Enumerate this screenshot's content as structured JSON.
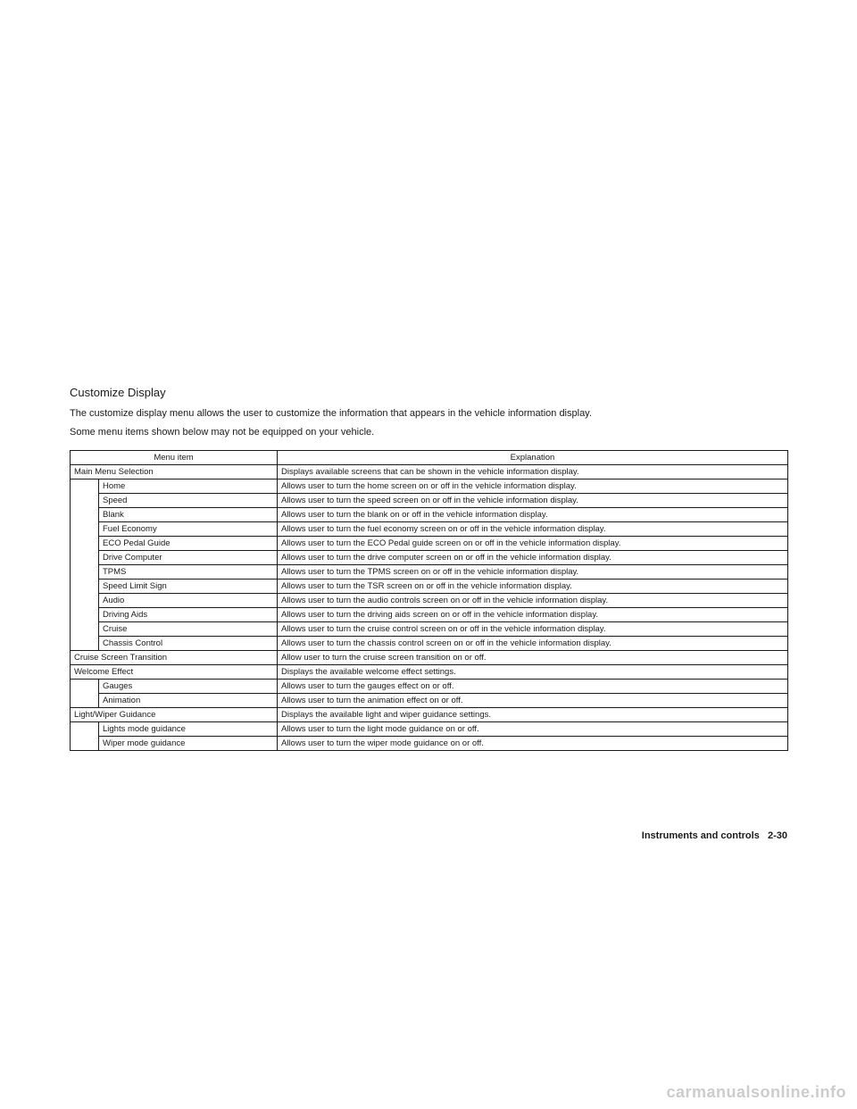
{
  "section_title": "Customize Display",
  "intro_line1": "The customize display menu allows the user to customize the information that appears in the vehicle information display.",
  "intro_line2": "Some menu items shown below may not be equipped on your vehicle.",
  "table": {
    "header_item": "Menu item",
    "header_explanation": "Explanation",
    "rows": [
      {
        "type": "full",
        "item": "Main Menu Selection",
        "exp": "Displays available screens that can be shown in the vehicle information display."
      },
      {
        "type": "sub",
        "item": "Home",
        "exp": "Allows user to turn the home screen on or off in the vehicle information display."
      },
      {
        "type": "sub",
        "item": "Speed",
        "exp": "Allows user to turn the speed screen on or off in the vehicle information display."
      },
      {
        "type": "sub",
        "item": "Blank",
        "exp": "Allows user to turn the blank on or off in the vehicle information display."
      },
      {
        "type": "sub",
        "item": "Fuel Economy",
        "exp": "Allows user to turn the fuel economy screen on or off in the vehicle information display."
      },
      {
        "type": "sub",
        "item": "ECO Pedal Guide",
        "exp": "Allows user to turn the ECO Pedal guide screen on or off in the vehicle information display."
      },
      {
        "type": "sub",
        "item": "Drive Computer",
        "exp": "Allows user to turn the drive computer screen on or off in the vehicle information display."
      },
      {
        "type": "sub",
        "item": "TPMS",
        "exp": "Allows user to turn the TPMS screen on or off in the vehicle information display."
      },
      {
        "type": "sub",
        "item": "Speed Limit Sign",
        "exp": "Allows user to turn the TSR screen on or off in the vehicle information display."
      },
      {
        "type": "sub",
        "item": "Audio",
        "exp": "Allows user to turn the audio controls screen on or off in the vehicle information display."
      },
      {
        "type": "sub",
        "item": "Driving Aids",
        "exp": "Allows user to turn the driving aids screen on or off in the vehicle information display."
      },
      {
        "type": "sub",
        "item": "Cruise",
        "exp": "Allows user to turn the cruise control screen on or off in the vehicle information display."
      },
      {
        "type": "sub",
        "item": "Chassis Control",
        "exp": "Allows user to turn the chassis control screen on or off in the vehicle information display."
      },
      {
        "type": "full",
        "item": "Cruise Screen Transition",
        "exp": "Allow user to turn the cruise screen transition on or off."
      },
      {
        "type": "full",
        "item": "Welcome Effect",
        "exp": "Displays the available welcome effect settings."
      },
      {
        "type": "sub2",
        "item": "Gauges",
        "exp": "Allows user to turn the gauges effect on or off."
      },
      {
        "type": "sub2",
        "item": "Animation",
        "exp": "Allows user to turn the animation effect on or off."
      },
      {
        "type": "full",
        "item": "Light/Wiper Guidance",
        "exp": "Displays the available light and wiper guidance settings."
      },
      {
        "type": "sub2",
        "item": "Lights mode guidance",
        "exp": "Allows user to turn the light mode guidance on or off."
      },
      {
        "type": "sub2",
        "item": "Wiper mode guidance",
        "exp": "Allows user to turn the wiper mode guidance on or off."
      }
    ]
  },
  "footer_text": "Instruments and controls",
  "footer_page": "2-30",
  "watermark": "carmanualsonline.info"
}
